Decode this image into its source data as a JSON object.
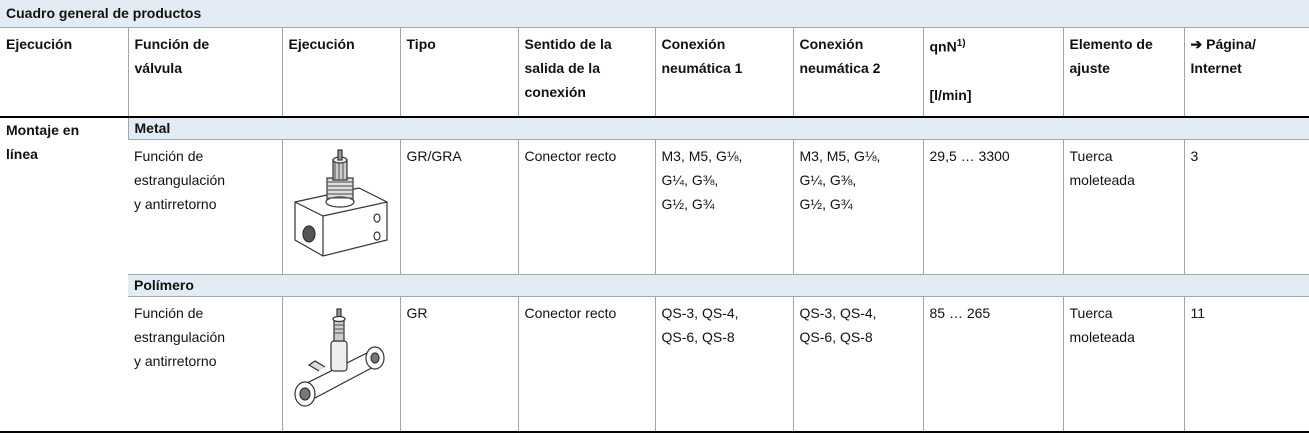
{
  "table": {
    "title": "Cuadro general de productos",
    "header": {
      "execution": "Ejecución",
      "valve_function": [
        "Función de",
        "válvula"
      ],
      "execution_image": "Ejecución",
      "type": "Tipo",
      "direction": [
        "Sentido de la",
        "salida de la",
        "conexión"
      ],
      "connection_1": [
        "Conexión",
        "neumática 1"
      ],
      "connection_2": [
        "Conexión",
        "neumática 2"
      ],
      "flow": "qnN",
      "flow_note": "1)",
      "flow_unit": "[l/min]",
      "adjustment": [
        "Elemento de",
        "ajuste"
      ],
      "page": [
        "➔ Página/",
        "Internet"
      ]
    },
    "mounting": [
      "Montaje en",
      "línea"
    ],
    "groups": [
      {
        "name": "Metal",
        "function": [
          "Función de",
          "estrangulación",
          "y antirretorno"
        ],
        "type": "GR/GRA",
        "direction": "Conector recto",
        "connection_1": [
          "M3, M5, G⅛,",
          "G¼, G⅜,",
          "G½, G¾"
        ],
        "connection_2": [
          "M3, M5, G⅛,",
          "G¼, G⅜,",
          "G½, G¾"
        ],
        "flow": "29,5 … 3300",
        "adjustment": [
          "Tuerca",
          "moleteada"
        ],
        "page": 3
      },
      {
        "name": "Polímero",
        "function": [
          "Función de",
          "estrangulación",
          "y antirretorno"
        ],
        "type": "GR",
        "direction": "Conector recto",
        "connection_1": [
          "QS-3, QS-4,",
          "QS-6, QS-8"
        ],
        "connection_2": [
          "QS-3, QS-4,",
          "QS-6, QS-8"
        ],
        "flow": "85 … 265",
        "adjustment": [
          "Tuerca",
          "moleteada"
        ],
        "page": 11
      }
    ]
  }
}
